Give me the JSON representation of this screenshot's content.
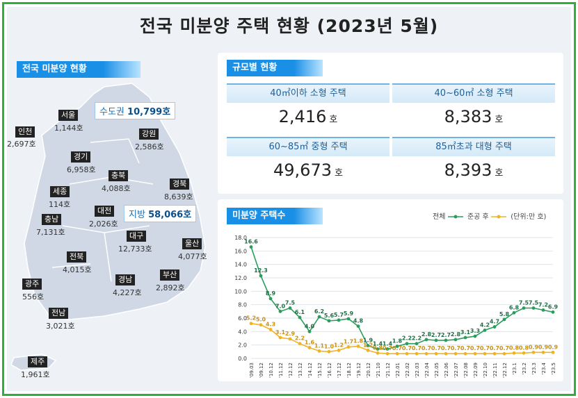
{
  "title": "전국 미분양 주택 현황  (2023년 5월)",
  "map_section": {
    "label": "전국 미분양 현황",
    "callouts": {
      "capital": {
        "name": "수도권",
        "value": "10,799호"
      },
      "local": {
        "name": "지방",
        "value": "58,066호"
      }
    },
    "regions": [
      {
        "name": "서울",
        "value": "1,144호"
      },
      {
        "name": "인천",
        "value": "2,697호"
      },
      {
        "name": "강원",
        "value": "2,586호"
      },
      {
        "name": "경기",
        "value": "6,958호"
      },
      {
        "name": "충북",
        "value": "4,088호"
      },
      {
        "name": "세종",
        "value": "114호"
      },
      {
        "name": "경북",
        "value": "8,639호"
      },
      {
        "name": "대전",
        "value": "2,026호"
      },
      {
        "name": "충남",
        "value": "7,131호"
      },
      {
        "name": "대구",
        "value": "12,733호"
      },
      {
        "name": "울산",
        "value": "4,077호"
      },
      {
        "name": "전북",
        "value": "4,015호"
      },
      {
        "name": "경남",
        "value": "4,227호"
      },
      {
        "name": "부산",
        "value": "2,892호"
      },
      {
        "name": "광주",
        "value": "556호"
      },
      {
        "name": "전남",
        "value": "3,021호"
      },
      {
        "name": "제주",
        "value": "1,961호"
      }
    ]
  },
  "size_section": {
    "label": "규모별 현황",
    "cells": [
      {
        "title": "40㎡이하 소형 주택",
        "value": "2,416",
        "unit": "호"
      },
      {
        "title": "40~60㎡ 소형 주택",
        "value": "8,383",
        "unit": "호"
      },
      {
        "title": "60~85㎡ 중형 주택",
        "value": "49,673",
        "unit": "호"
      },
      {
        "title": "85㎡초과 대형 주택",
        "value": "8,393",
        "unit": "호"
      }
    ]
  },
  "chart_section": {
    "label": "미분양 주택수",
    "legend": {
      "total": "전체",
      "completed": "준공 후",
      "unit": "(단위:만 호)"
    }
  },
  "colors": {
    "total": "#2a9d5c",
    "completed": "#f0b323",
    "accent": "#1a8fe6",
    "frame": "#2fae3b"
  },
  "chart_data": {
    "type": "line",
    "title": "미분양 주택수",
    "unit": "(단위:만 호)",
    "ylim": [
      0,
      18
    ],
    "yticks": [
      "0.0",
      "2.0",
      "4.0",
      "6.0",
      "8.0",
      "10.0",
      "12.0",
      "14.0",
      "16.0",
      "18.0"
    ],
    "x": [
      "'09.03",
      "'09.12",
      "'10.12",
      "'11.12",
      "'12.12",
      "'13.12",
      "'14.12",
      "'15.12",
      "'16.12",
      "'17.12",
      "'18.12",
      "'19.12",
      "'20.12",
      "'21.10",
      "'21.12",
      "'22.01",
      "'22.02",
      "'22.03",
      "'22.04",
      "'22.05",
      "'22.06",
      "'22.07",
      "'22.08",
      "'22.09",
      "'22.10",
      "'22.11",
      "'22.12",
      "'23.1",
      "'23.2",
      "'23.3",
      "'23.4",
      "'23.5"
    ],
    "series": [
      {
        "name": "전체",
        "values": [
          16.6,
          12.3,
          8.9,
          7.0,
          7.5,
          6.1,
          4.0,
          6.2,
          5.6,
          5.7,
          5.9,
          4.8,
          1.9,
          1.4,
          1.4,
          1.8,
          2.2,
          2.2,
          2.8,
          2.7,
          2.7,
          2.8,
          3.1,
          3.3,
          4.2,
          4.7,
          5.8,
          6.8,
          7.5,
          7.5,
          7.2,
          6.9
        ],
        "labels": [
          "16.6",
          "12.3",
          "8.9",
          "7.0",
          "7.5",
          "6.1",
          "4.0",
          "6.2",
          "5.6",
          "5.7",
          "5.9",
          "4.8",
          "1.9",
          "1.4",
          "1.4",
          "1.8",
          "2.2",
          "2.2",
          "2.8",
          "2.7",
          "2.7",
          "2.8",
          "3.1",
          "3.3",
          "4.2",
          "4.7",
          "5.8",
          "6.8",
          "7.5",
          "7.5",
          "7.2",
          "6.9"
        ]
      },
      {
        "name": "준공 후",
        "values": [
          5.2,
          5.0,
          4.3,
          3.1,
          2.9,
          2.2,
          1.6,
          1.1,
          1.0,
          1.2,
          1.7,
          1.8,
          1.2,
          0.8,
          0.7,
          0.7,
          0.7,
          0.7,
          0.7,
          0.7,
          0.7,
          0.7,
          0.7,
          0.7,
          0.7,
          0.7,
          0.7,
          0.8,
          0.8,
          0.9,
          0.9,
          0.9
        ],
        "labels": [
          "5.2",
          "5.0",
          "4.3",
          "3.1",
          "2.9",
          "2.2",
          "1.6",
          "1.1",
          "1.0",
          "1.2",
          "1.7",
          "1.8",
          "1.2",
          "0.8",
          "0.7",
          "0.7",
          "0.7",
          "0.7",
          "0.7",
          "0.7",
          "0.7",
          "0.7",
          "0.7",
          "0.7",
          "0.7",
          "0.7",
          "0.7",
          "0.8",
          "0.8",
          "0.9",
          "0.9",
          "0.9"
        ]
      }
    ]
  }
}
